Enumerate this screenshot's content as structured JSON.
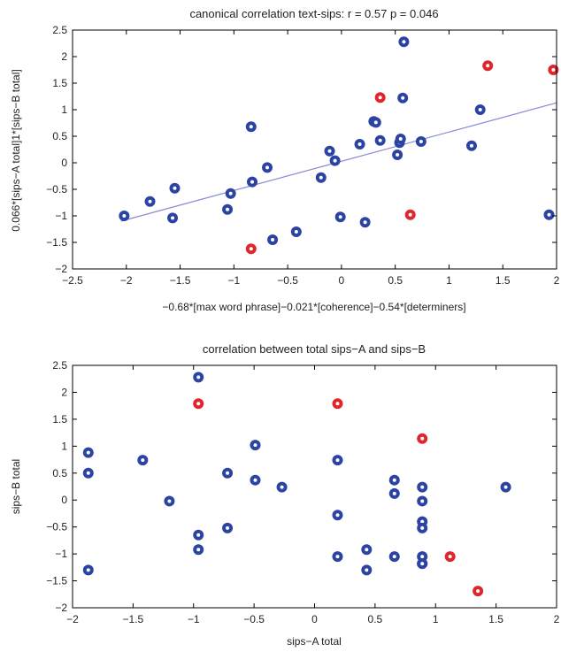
{
  "chart_data": [
    {
      "type": "scatter",
      "title": "canonical correlation text-sips: r = 0.57 p = 0.046",
      "xlabel": "−0.68*[max word phrase]−0.021*[coherence]−0.54*[determiners]",
      "ylabel": "0.066*[sips−A total]1*[sips−B total]",
      "xlim": [
        -2.5,
        2
      ],
      "ylim": [
        -2,
        2.5
      ],
      "xticks": [
        -2.5,
        -2,
        -1.5,
        -1,
        -0.5,
        0,
        0.5,
        1,
        1.5,
        2
      ],
      "yticks": [
        -2,
        -1.5,
        -1,
        -0.5,
        0,
        0.5,
        1,
        1.5,
        2,
        2.5
      ],
      "xtick_labels": [
        "−2.5",
        "−2",
        "−1.5",
        "−1",
        "−0.5",
        "0",
        "0.5",
        "1",
        "1.5",
        "2"
      ],
      "ytick_labels": [
        "−2",
        "−1.5",
        "−1",
        "−0.5",
        "0",
        "0.5",
        "1",
        "1.5",
        "2",
        "2.5"
      ],
      "grid": false,
      "colors": {
        "blue": "#2b44a3",
        "red": "#e0262d",
        "fit": "#8888d8"
      },
      "fit_line": {
        "x": [
          -2.05,
          2.0
        ],
        "y": [
          -1.1,
          1.13
        ]
      },
      "series": [
        {
          "color": "blue",
          "x": [
            -2.02,
            -1.78,
            -1.57,
            -1.55,
            -1.06,
            -1.03,
            -0.84,
            -0.83,
            -0.69,
            -0.64,
            -0.42,
            -0.19,
            -0.11,
            -0.06,
            -0.01,
            0.17,
            0.22,
            0.3,
            0.32,
            0.36,
            0.52,
            0.54,
            0.55,
            0.57,
            0.58,
            0.74,
            1.21,
            1.29,
            1.93
          ],
          "y": [
            -1.0,
            -0.73,
            -1.04,
            -0.48,
            -0.88,
            -0.58,
            0.68,
            -0.36,
            -0.09,
            -1.45,
            -1.3,
            -0.28,
            0.22,
            0.04,
            -1.02,
            0.35,
            -1.12,
            0.78,
            0.76,
            0.42,
            0.15,
            0.38,
            0.45,
            1.22,
            2.28,
            0.4,
            0.32,
            1.0,
            -0.98
          ]
        },
        {
          "color": "red",
          "x": [
            -0.84,
            0.36,
            0.64,
            1.36,
            1.97
          ],
          "y": [
            -1.62,
            1.23,
            -0.98,
            1.83,
            1.75
          ]
        }
      ]
    },
    {
      "type": "scatter",
      "title": "correlation between total sips−A and sips−B",
      "xlabel": "sips−A total",
      "ylabel": "sips−B total",
      "xlim": [
        -2,
        2
      ],
      "ylim": [
        -2,
        2.5
      ],
      "xticks": [
        -2,
        -1.5,
        -1,
        -0.5,
        0,
        0.5,
        1,
        1.5,
        2
      ],
      "yticks": [
        -2,
        -1.5,
        -1,
        -0.5,
        0,
        0.5,
        1,
        1.5,
        2,
        2.5
      ],
      "xtick_labels": [
        "−2",
        "−1.5",
        "−1",
        "−0.5",
        "0",
        "0.5",
        "1",
        "1.5",
        "2"
      ],
      "ytick_labels": [
        "−2",
        "−1.5",
        "−1",
        "−0.5",
        "0",
        "0.5",
        "1",
        "1.5",
        "2",
        "2.5"
      ],
      "grid": false,
      "colors": {
        "blue": "#2b44a3",
        "red": "#e0262d"
      },
      "series": [
        {
          "color": "blue",
          "x": [
            -1.87,
            -1.87,
            -1.87,
            -1.42,
            -1.2,
            -0.96,
            -0.96,
            -0.96,
            -0.72,
            -0.72,
            -0.49,
            -0.49,
            -0.27,
            0.19,
            0.19,
            0.19,
            0.43,
            0.43,
            0.66,
            0.66,
            0.66,
            0.89,
            0.89,
            0.89,
            0.89,
            0.89,
            0.89,
            0.89,
            1.58
          ],
          "y": [
            0.88,
            0.5,
            -1.3,
            0.74,
            -0.02,
            2.28,
            -0.65,
            -0.92,
            0.5,
            -0.52,
            1.02,
            0.37,
            0.24,
            0.74,
            -0.28,
            -1.05,
            -0.92,
            -1.3,
            0.37,
            0.12,
            -1.05,
            0.24,
            -0.02,
            -0.4,
            -0.52,
            -1.05,
            -1.18,
            -1.18,
            0.24
          ]
        },
        {
          "color": "red",
          "x": [
            -0.96,
            0.19,
            0.89,
            1.12,
            1.35
          ],
          "y": [
            1.79,
            1.79,
            1.14,
            -1.05,
            -1.69
          ]
        }
      ]
    }
  ]
}
